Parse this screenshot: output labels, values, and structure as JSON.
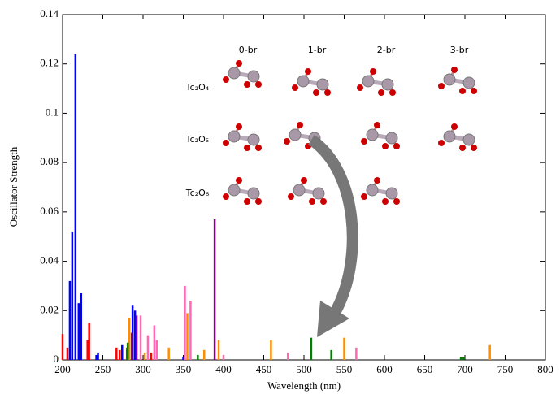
{
  "chart_data": {
    "type": "stick",
    "xlabel": "Wavelength (nm)",
    "ylabel": "Oscillator Strength",
    "xlim": [
      200,
      800
    ],
    "xticks": [
      200,
      250,
      300,
      350,
      400,
      450,
      500,
      550,
      600,
      650,
      700,
      750,
      800
    ],
    "ylim": [
      0,
      0.14
    ],
    "yticks": [
      0,
      0.02,
      0.04,
      0.06,
      0.08,
      0.1,
      0.12,
      0.14
    ],
    "inset_columns": [
      "0-br",
      "1-br",
      "2-br",
      "3-br"
    ],
    "inset_rows": [
      "Tc₂O₄",
      "Tc₂O₅",
      "Tc₂O₆"
    ],
    "series": [
      {
        "color": "#0000ff",
        "x": [
          209,
          212,
          216,
          220,
          223,
          242,
          244,
          274,
          282,
          287,
          290,
          350
        ],
        "values": [
          0.032,
          0.052,
          0.124,
          0.023,
          0.027,
          0.002,
          0.003,
          0.006,
          0.003,
          0.022,
          0.02,
          0.001
        ]
      },
      {
        "color": "#ff0000",
        "x": [
          200,
          206,
          231,
          233,
          267,
          271,
          280,
          310
        ],
        "values": [
          0.0105,
          0.005,
          0.008,
          0.015,
          0.005,
          0.004,
          0.005,
          0.003
        ]
      },
      {
        "color": "#8b008b",
        "x": [
          286,
          292,
          389
        ],
        "values": [
          0.011,
          0.018,
          0.057
        ]
      },
      {
        "color": "#ff69b4",
        "x": [
          297,
          306,
          314,
          317,
          352,
          359,
          400,
          480,
          565
        ],
        "values": [
          0.018,
          0.01,
          0.014,
          0.008,
          0.03,
          0.024,
          0.002,
          0.003,
          0.005
        ]
      },
      {
        "color": "#ff8c00",
        "x": [
          283,
          302,
          332,
          355,
          376,
          394,
          459,
          550,
          731
        ],
        "values": [
          0.017,
          0.003,
          0.005,
          0.019,
          0.004,
          0.008,
          0.008,
          0.009,
          0.006
        ]
      },
      {
        "color": "#008000",
        "x": [
          281,
          368,
          509,
          534,
          695,
          698
        ],
        "values": [
          0.007,
          0.002,
          0.009,
          0.004,
          0.001,
          0.001
        ]
      }
    ]
  }
}
